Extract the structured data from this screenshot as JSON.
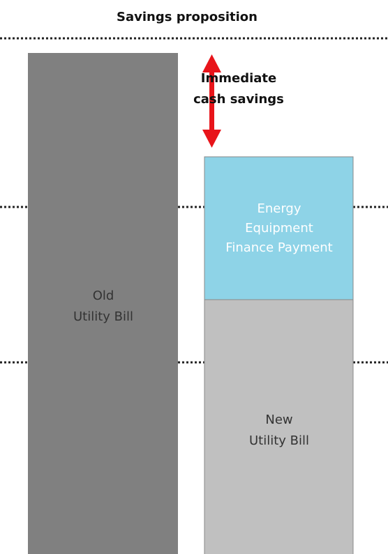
{
  "title": "Savings proposition",
  "savings_label": [
    "Immediate",
    "cash savings"
  ],
  "old_bill": [
    "Old",
    "Utility Bill"
  ],
  "finance_payment": [
    "Energy",
    "Equipment",
    "Finance Payment"
  ],
  "new_bill": [
    "New",
    "Utility Bill"
  ]
}
